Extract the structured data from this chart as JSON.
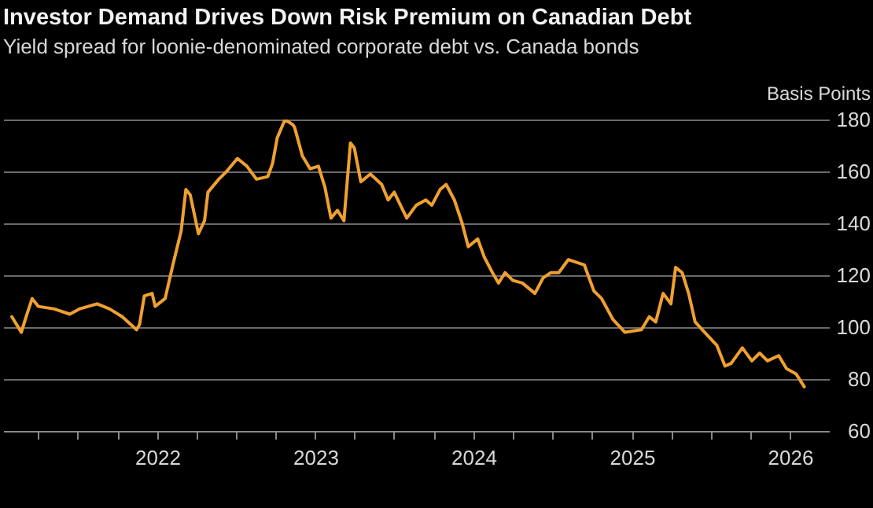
{
  "chart_data": {
    "type": "line",
    "title": "Investor Demand Drives Down Risk Premium on Canadian Debt",
    "subtitle": "Yield spread for loonie-denominated corporate debt vs. Canada bonds",
    "ylabel": "Basis Points",
    "x": [
      "2021-01-30",
      "2021-02-21",
      "2021-03-04",
      "2021-03-18",
      "2021-04-01",
      "2021-05-08",
      "2021-06-13",
      "2021-07-05",
      "2021-08-15",
      "2021-09-13",
      "2021-10-12",
      "2021-11-14",
      "2021-11-21",
      "2021-12-02",
      "2021-12-20",
      "2021-12-27",
      "2022-01-19",
      "2022-02-06",
      "2022-02-25",
      "2022-03-08",
      "2022-03-18",
      "2022-04-06",
      "2022-04-20",
      "2022-04-28",
      "2022-05-23",
      "2022-06-10",
      "2022-07-05",
      "2022-07-27",
      "2022-08-18",
      "2022-09-13",
      "2022-09-24",
      "2022-10-05",
      "2022-10-23",
      "2022-11-10",
      "2022-11-14",
      "2022-12-02",
      "2022-12-20",
      "2023-01-08",
      "2023-01-23",
      "2023-02-06",
      "2023-02-21",
      "2023-03-08",
      "2023-03-23",
      "2023-04-01",
      "2023-04-16",
      "2023-05-08",
      "2023-06-03",
      "2023-06-18",
      "2023-07-02",
      "2023-07-31",
      "2023-08-22",
      "2023-09-13",
      "2023-09-27",
      "2023-10-16",
      "2023-10-30",
      "2023-11-18",
      "2023-12-06",
      "2023-12-20",
      "2024-01-11",
      "2024-01-26",
      "2024-02-14",
      "2024-02-28",
      "2024-03-14",
      "2024-04-01",
      "2024-04-23",
      "2024-05-22",
      "2024-06-10",
      "2024-06-28",
      "2024-07-16",
      "2024-08-07",
      "2024-09-13",
      "2024-10-05",
      "2024-10-23",
      "2024-11-18",
      "2024-12-16",
      "2025-01-23",
      "2025-02-10",
      "2025-02-25",
      "2025-03-14",
      "2025-04-01",
      "2025-04-12",
      "2025-04-27",
      "2025-05-12",
      "2025-05-27",
      "2025-06-18",
      "2025-07-16",
      "2025-08-04",
      "2025-08-18",
      "2025-09-13",
      "2025-10-05",
      "2025-10-23",
      "2025-11-10",
      "2025-12-06",
      "2025-12-24",
      "2026-01-15",
      "2026-02-03"
    ],
    "series": [
      {
        "color": "#f0a030",
        "values": [
          104,
          98,
          104,
          111,
          108,
          107,
          105,
          107,
          109,
          107,
          104,
          99,
          101,
          112,
          113,
          108,
          111,
          124,
          137,
          153,
          151,
          136,
          141,
          152,
          157,
          160,
          165,
          162,
          157,
          158,
          163,
          173,
          180,
          178,
          177,
          166,
          161,
          162,
          154,
          142,
          145,
          141,
          171,
          169,
          156,
          159,
          155,
          149,
          152,
          142,
          147,
          149,
          147,
          153,
          155,
          149,
          140,
          131,
          134,
          127,
          121,
          117,
          121,
          118,
          117,
          113,
          119,
          121,
          121,
          126,
          124,
          114,
          111,
          103,
          98,
          99,
          104,
          102,
          113,
          109,
          123,
          121,
          113,
          102,
          98,
          93,
          85,
          86,
          92,
          87,
          90,
          87,
          89,
          84,
          82,
          77
        ]
      }
    ],
    "xlim": [
      "2021-01-10",
      "2026-04-01"
    ],
    "xticks": [
      {
        "value": "2021-04-01",
        "label": null
      },
      {
        "value": "2021-07-01",
        "label": null
      },
      {
        "value": "2021-10-01",
        "label": null
      },
      {
        "value": "2022-01-01",
        "label": "2022"
      },
      {
        "value": "2022-04-01",
        "label": null
      },
      {
        "value": "2022-07-01",
        "label": null
      },
      {
        "value": "2022-10-01",
        "label": null
      },
      {
        "value": "2023-01-01",
        "label": "2023"
      },
      {
        "value": "2023-04-01",
        "label": null
      },
      {
        "value": "2023-07-01",
        "label": null
      },
      {
        "value": "2023-10-01",
        "label": null
      },
      {
        "value": "2024-01-01",
        "label": "2024"
      },
      {
        "value": "2024-04-01",
        "label": null
      },
      {
        "value": "2024-07-01",
        "label": null
      },
      {
        "value": "2024-10-01",
        "label": null
      },
      {
        "value": "2025-01-01",
        "label": "2025"
      },
      {
        "value": "2025-04-01",
        "label": null
      },
      {
        "value": "2025-07-01",
        "label": null
      },
      {
        "value": "2025-10-01",
        "label": null
      },
      {
        "value": "2026-01-01",
        "label": "2026"
      }
    ],
    "ylim": [
      60,
      180
    ],
    "yticks": [
      60,
      80,
      100,
      120,
      140,
      160,
      180
    ],
    "grid": "y"
  }
}
